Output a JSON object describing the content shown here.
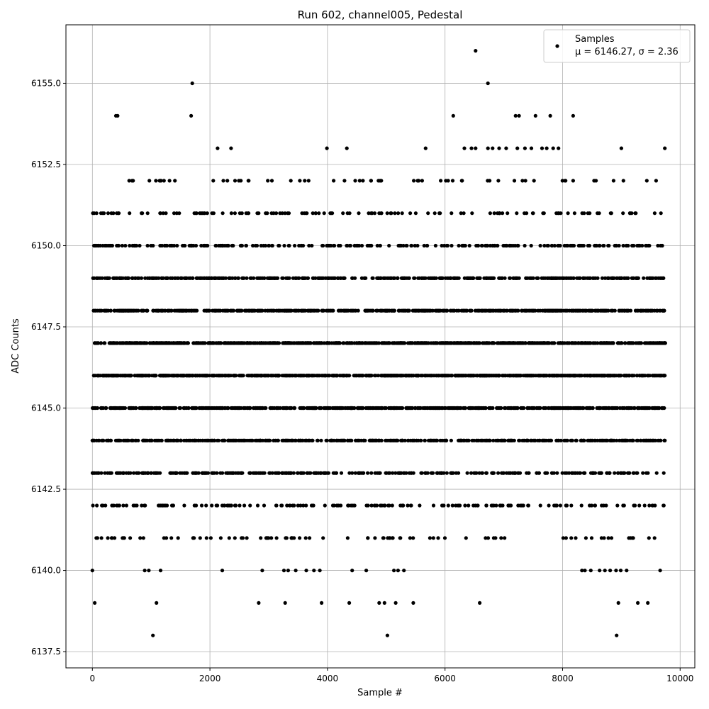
{
  "chart_data": {
    "type": "scatter",
    "title": "Run 602, channel005, Pedestal",
    "xlabel": "Sample #",
    "ylabel": "ADC Counts",
    "xlim": [
      -450,
      10250
    ],
    "ylim": [
      6137.0,
      6156.8
    ],
    "xticks": [
      0,
      2000,
      4000,
      6000,
      8000,
      10000
    ],
    "xtick_labels": [
      "0",
      "2000",
      "4000",
      "6000",
      "8000",
      "10000"
    ],
    "yticks": [
      6137.5,
      6140.0,
      6142.5,
      6145.0,
      6147.5,
      6150.0,
      6152.5,
      6155.0
    ],
    "ytick_labels": [
      "6137.5",
      "6140.0",
      "6142.5",
      "6145.0",
      "6147.5",
      "6150.0",
      "6152.5",
      "6155.0"
    ],
    "grid": true,
    "legend_position": "upper-right",
    "marker_color": "#000000",
    "series": [
      {
        "name": "Samples",
        "stats_label": "μ = 6146.27, σ = 2.36",
        "n_samples": 9750,
        "mean": 6146.27,
        "sigma": 2.36,
        "sampled_points": {
          "x": [
            0,
            40,
            1030,
            5020,
            8920,
            1090,
            2830,
            3280,
            3900,
            4370,
            4880,
            4970,
            5160,
            5460,
            6590,
            8950,
            9280,
            9450,
            890,
            960,
            1160,
            2210,
            2890,
            3260,
            3330,
            3460,
            3640,
            3770,
            3870,
            4420,
            4660,
            5130,
            5200,
            5300,
            8330,
            8380,
            8480,
            8630,
            8720,
            8810,
            8910,
            8990,
            9090,
            9660,
            6520,
            1700,
            6730,
            400,
            430,
            1680,
            6140,
            7200,
            7260,
            7540,
            7790,
            8180,
            2130,
            2360,
            3990,
            4330,
            5670,
            6330,
            6450,
            6520,
            6730,
            6810,
            6920,
            7040,
            7230,
            7360,
            7470,
            7650,
            7730,
            7840,
            7930,
            9000,
            9740
          ],
          "y": [
            6140,
            6139,
            6138,
            6138,
            6138,
            6139,
            6139,
            6139,
            6139,
            6139,
            6139,
            6139,
            6139,
            6139,
            6139,
            6139,
            6139,
            6139,
            6140,
            6140,
            6140,
            6140,
            6140,
            6140,
            6140,
            6140,
            6140,
            6140,
            6140,
            6140,
            6140,
            6140,
            6140,
            6140,
            6140,
            6140,
            6140,
            6140,
            6140,
            6140,
            6140,
            6140,
            6140,
            6140,
            6156,
            6155,
            6155,
            6154,
            6154,
            6154,
            6154,
            6154,
            6154,
            6154,
            6154,
            6154,
            6153,
            6153,
            6153,
            6153,
            6153,
            6153,
            6153,
            6153,
            6153,
            6153,
            6153,
            6153,
            6153,
            6153,
            6153,
            6153,
            6153,
            6153,
            6153,
            6153,
            6153
          ]
        },
        "level_spans": [
          {
            "value": 6141,
            "x_start": 40,
            "x_end": 9740
          },
          {
            "value": 6142,
            "x_start": 0,
            "x_end": 9740
          },
          {
            "value": 6143,
            "x_start": 0,
            "x_end": 9750
          },
          {
            "value": 6144,
            "x_start": 0,
            "x_end": 9750
          },
          {
            "value": 6145,
            "x_start": 0,
            "x_end": 9750
          },
          {
            "value": 6146,
            "x_start": 0,
            "x_end": 9750
          },
          {
            "value": 6147,
            "x_start": 0,
            "x_end": 9750
          },
          {
            "value": 6148,
            "x_start": 0,
            "x_end": 9750
          },
          {
            "value": 6149,
            "x_start": 0,
            "x_end": 9750
          },
          {
            "value": 6150,
            "x_start": 0,
            "x_end": 9700
          },
          {
            "value": 6151,
            "x_start": 0,
            "x_end": 9700
          },
          {
            "value": 6152,
            "x_start": 340,
            "x_end": 9740
          }
        ]
      }
    ]
  }
}
